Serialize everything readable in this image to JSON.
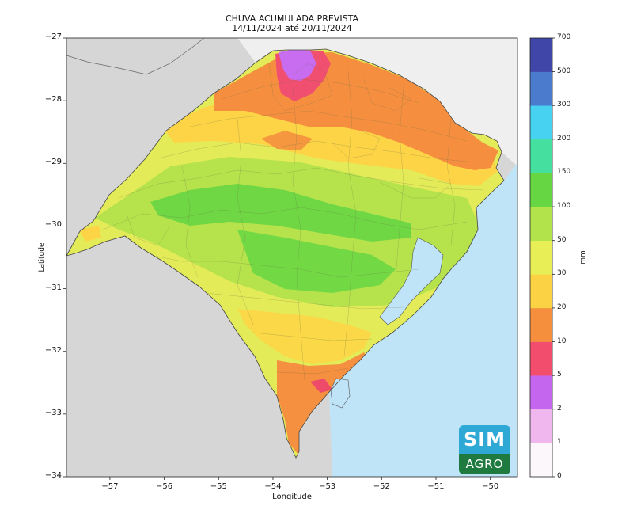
{
  "title": {
    "line1": "CHUVA ACUMULADA PREVISTA",
    "line2": "14/11/2024 até 20/11/2024"
  },
  "axes": {
    "xlabel": "Longitude",
    "ylabel": "Latitude",
    "xticks": [
      "-57",
      "-56",
      "-55",
      "-54",
      "-53",
      "-52",
      "-51",
      "-50"
    ],
    "yticks": [
      "-27",
      "-28",
      "-29",
      "-30",
      "-31",
      "-32",
      "-33",
      "-34"
    ],
    "xlim": [
      -57.8,
      -49.5
    ],
    "ylim": [
      -34,
      -27
    ]
  },
  "colorbar": {
    "unit": "mm",
    "levels": [
      "0",
      "1",
      "2",
      "5",
      "10",
      "20",
      "30",
      "50",
      "100",
      "150",
      "200",
      "300",
      "500",
      "700"
    ],
    "colors": [
      "#fbf7fb",
      "#f0b6ee",
      "#c566ef",
      "#f24d6d",
      "#f58f3e",
      "#fbd243",
      "#e8ee56",
      "#b2e34b",
      "#66d742",
      "#45e0a0",
      "#47d2f2",
      "#4b7bcd",
      "#4046a8"
    ]
  },
  "map_colors": {
    "ocean": "#bfe4f7",
    "land_outside": "#d6d6d6",
    "foreign_land_ne": "#efefef",
    "borders": "#555555"
  },
  "logo": {
    "top_text": "SIM",
    "bottom_text": "AGRO"
  }
}
